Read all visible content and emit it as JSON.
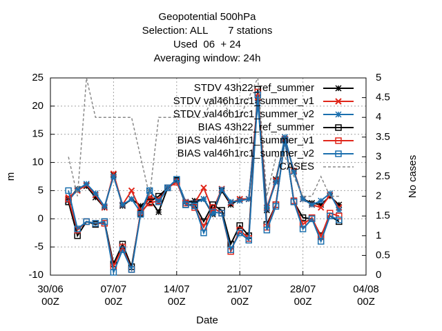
{
  "chart_data": {
    "type": "line",
    "title": "Geopotential 500hPa",
    "subtitle": [
      "Selection: ALL       7 stations",
      "Used  06  + 24",
      "Averaging window: 24h"
    ],
    "xlabel": "Date",
    "ylabel": "m",
    "y2label": "No cases",
    "x": [
      2,
      3,
      4,
      5,
      6,
      7,
      8,
      9,
      10,
      11,
      12,
      13,
      14,
      15,
      16,
      17,
      18,
      19,
      20,
      21,
      22,
      23,
      24,
      25,
      26,
      27,
      28,
      29,
      30,
      31,
      32
    ],
    "xlim": [
      0,
      35
    ],
    "xticks": [
      {
        "value": 0,
        "label": "30/06 00Z"
      },
      {
        "value": 7,
        "label": "07/07 00Z"
      },
      {
        "value": 14,
        "label": "14/07 00Z"
      },
      {
        "value": 21,
        "label": "21/07 00Z"
      },
      {
        "value": 28,
        "label": "28/07 00Z"
      },
      {
        "value": 35,
        "label": "04/08 00Z"
      }
    ],
    "ylim": [
      -10,
      25
    ],
    "yticks": [
      -10,
      -5,
      0,
      5,
      10,
      15,
      20,
      25
    ],
    "y2lim": [
      0,
      5
    ],
    "y2ticks": [
      0,
      0.5,
      1,
      1.5,
      2,
      2.5,
      3,
      3.5,
      4,
      4.5,
      5
    ],
    "grid": true,
    "legend": "top-right",
    "series": [
      {
        "name": "STDV 43h22_ref_summer",
        "color": "#000000",
        "marker": "star",
        "values": [
          3.5,
          5.3,
          5.8,
          3.8,
          2.0,
          7.8,
          2.3,
          3.5,
          2.3,
          3.5,
          1.2,
          5.5,
          6.8,
          3.0,
          3.2,
          3.5,
          0.8,
          5.0,
          2.5,
          3.5,
          3.5,
          21.0,
          1.5,
          7.0,
          14.0,
          8.5,
          3.5,
          2.8,
          2.5,
          4.0,
          2.5
        ]
      },
      {
        "name": "STDV val46h1rc1_summer_v1",
        "color": "#e0261a",
        "marker": "x",
        "values": [
          3.8,
          5.0,
          6.0,
          4.2,
          2.0,
          8.0,
          2.5,
          5.0,
          1.5,
          3.8,
          3.5,
          5.5,
          6.8,
          3.0,
          2.8,
          5.5,
          1.5,
          5.3,
          2.8,
          3.5,
          3.5,
          21.5,
          2.0,
          6.8,
          14.2,
          8.5,
          3.5,
          2.5,
          2.0,
          4.2,
          2.0
        ]
      },
      {
        "name": "STDV val46h1rc1_summer_v2",
        "color": "#1a6fae",
        "marker": "star",
        "values": [
          3.2,
          5.2,
          6.2,
          4.5,
          2.2,
          7.5,
          2.5,
          3.5,
          1.2,
          5.0,
          3.0,
          5.5,
          7.0,
          3.0,
          2.8,
          3.5,
          1.0,
          5.2,
          3.0,
          3.2,
          3.5,
          20.5,
          1.8,
          6.5,
          14.5,
          8.3,
          3.5,
          2.5,
          3.2,
          4.5,
          1.5
        ]
      },
      {
        "name": "BIAS 43h22_ref_summer",
        "color": "#000000",
        "marker": "square",
        "values": [
          3.0,
          -3.0,
          -0.5,
          -1.0,
          -0.5,
          -8.0,
          -4.5,
          -8.5,
          1.0,
          3.0,
          4.0,
          5.5,
          6.8,
          2.5,
          2.5,
          -0.5,
          2.5,
          1.5,
          -4.5,
          -1.2,
          -3.0,
          23.0,
          -1.0,
          2.5,
          14.0,
          3.0,
          0.2,
          0.0,
          -3.0,
          0.5,
          -0.5
        ]
      },
      {
        "name": "BIAS val46h1rc1_summer_v1",
        "color": "#e0261a",
        "marker": "square",
        "values": [
          3.5,
          -2.0,
          -0.5,
          -0.8,
          -0.8,
          -8.5,
          -5.0,
          -9.0,
          1.2,
          2.8,
          3.2,
          5.5,
          6.5,
          2.8,
          2.0,
          -1.5,
          2.0,
          1.0,
          -5.8,
          -2.0,
          -3.5,
          22.5,
          -1.5,
          2.5,
          14.0,
          3.2,
          -1.0,
          0.2,
          -3.2,
          1.0,
          0.5
        ]
      },
      {
        "name": "BIAS val46h1rc1_summer_v2",
        "color": "#1a6fae",
        "marker": "square",
        "values": [
          5.0,
          -1.8,
          -0.5,
          -0.8,
          -0.5,
          -9.5,
          -5.5,
          -9.0,
          0.8,
          5.0,
          3.0,
          5.5,
          7.0,
          2.5,
          2.3,
          -2.5,
          1.2,
          1.0,
          -5.5,
          -2.5,
          -3.8,
          22.0,
          -2.0,
          2.2,
          14.0,
          3.0,
          -1.8,
          0.0,
          -4.0,
          0.5,
          -0.2
        ]
      },
      {
        "name": "CASES",
        "color": "#888888",
        "marker": "none",
        "dash": true,
        "axis": "y2",
        "values": [
          3,
          2,
          5,
          4,
          4,
          4,
          4,
          4,
          3,
          2,
          4,
          4,
          4,
          4,
          4,
          4,
          4.5,
          4.5,
          4,
          4,
          4.5,
          5,
          2,
          3,
          3,
          2.5,
          2,
          2,
          2.5,
          2,
          2
        ]
      }
    ]
  }
}
